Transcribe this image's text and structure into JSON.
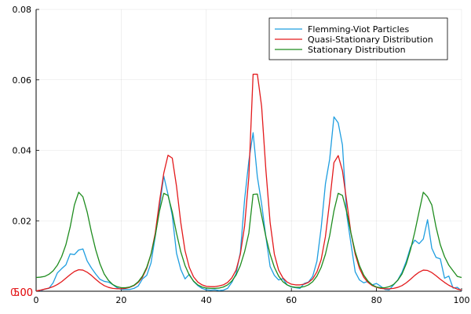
{
  "chart_data": {
    "type": "line",
    "title": "",
    "xlabel": "",
    "ylabel": "",
    "xlim": [
      0,
      100
    ],
    "ylim": [
      0,
      0.08
    ],
    "grid": true,
    "legend_position": "top-right",
    "x_ticks": [
      "0",
      "20",
      "40",
      "60",
      "80",
      "100"
    ],
    "y_ticks": [
      "0.02",
      "0.04",
      "0.06",
      "0.08"
    ],
    "overlay_labels": {
      "text_a": "500",
      "text_b": "0.00",
      "color": "#e31a1c"
    },
    "series": [
      {
        "name": "Flemming-Viot Particles",
        "color": "#1f9ee0",
        "points": [
          [
            1,
            0.0001
          ],
          [
            2,
            0.0006
          ],
          [
            3,
            0.0008
          ],
          [
            4,
            0.0024
          ],
          [
            5,
            0.0052
          ],
          [
            6,
            0.0064
          ],
          [
            7,
            0.0075
          ],
          [
            8,
            0.0106
          ],
          [
            9,
            0.0104
          ],
          [
            10,
            0.0117
          ],
          [
            11,
            0.012
          ],
          [
            12,
            0.0086
          ],
          [
            13,
            0.0066
          ],
          [
            14,
            0.0049
          ],
          [
            15,
            0.0034
          ],
          [
            16,
            0.0028
          ],
          [
            17,
            0.0026
          ],
          [
            18,
            0.0019
          ],
          [
            19,
            0.001
          ],
          [
            20,
            0.0005
          ],
          [
            21,
            0.0005
          ],
          [
            22,
            0.0005
          ],
          [
            23,
            0.0008
          ],
          [
            24,
            0.0015
          ],
          [
            25,
            0.0035
          ],
          [
            26,
            0.0045
          ],
          [
            27,
            0.008
          ],
          [
            28,
            0.0155
          ],
          [
            29,
            0.0238
          ],
          [
            30,
            0.0327
          ],
          [
            31,
            0.0275
          ],
          [
            32,
            0.0215
          ],
          [
            33,
            0.0108
          ],
          [
            34,
            0.0062
          ],
          [
            35,
            0.0035
          ],
          [
            36,
            0.0048
          ],
          [
            37,
            0.0028
          ],
          [
            38,
            0.0016
          ],
          [
            39,
            0.0008
          ],
          [
            40,
            0.0004
          ],
          [
            41,
            0.0003
          ],
          [
            42,
            0.0004
          ],
          [
            43,
            0.0002
          ],
          [
            44,
            0.0003
          ],
          [
            45,
            0.0008
          ],
          [
            46,
            0.0025
          ],
          [
            47,
            0.005
          ],
          [
            48,
            0.011
          ],
          [
            49,
            0.026
          ],
          [
            50,
            0.037
          ],
          [
            51,
            0.045
          ],
          [
            52,
            0.0325
          ],
          [
            53,
            0.0248
          ],
          [
            54,
            0.0155
          ],
          [
            55,
            0.007
          ],
          [
            56,
            0.0045
          ],
          [
            57,
            0.0032
          ],
          [
            58,
            0.0036
          ],
          [
            59,
            0.0018
          ],
          [
            60,
            0.0012
          ],
          [
            61,
            0.001
          ],
          [
            62,
            0.0008
          ],
          [
            63,
            0.0022
          ],
          [
            64,
            0.0026
          ],
          [
            65,
            0.0042
          ],
          [
            66,
            0.0085
          ],
          [
            67,
            0.018
          ],
          [
            68,
            0.0305
          ],
          [
            69,
            0.0375
          ],
          [
            70,
            0.0495
          ],
          [
            71,
            0.0478
          ],
          [
            72,
            0.0415
          ],
          [
            73,
            0.0218
          ],
          [
            74,
            0.0135
          ],
          [
            75,
            0.0055
          ],
          [
            76,
            0.0032
          ],
          [
            77,
            0.0024
          ],
          [
            78,
            0.0028
          ],
          [
            79,
            0.0018
          ],
          [
            80,
            0.0022
          ],
          [
            81,
            0.0014
          ],
          [
            82,
            0.0005
          ],
          [
            83,
            0.0004
          ],
          [
            84,
            0.0018
          ],
          [
            85,
            0.0032
          ],
          [
            86,
            0.0054
          ],
          [
            87,
            0.0085
          ],
          [
            88,
            0.0125
          ],
          [
            89,
            0.0145
          ],
          [
            90,
            0.0135
          ],
          [
            91,
            0.0148
          ],
          [
            92,
            0.0203
          ],
          [
            93,
            0.0122
          ],
          [
            94,
            0.0096
          ],
          [
            95,
            0.0092
          ],
          [
            96,
            0.0037
          ],
          [
            97,
            0.0043
          ],
          [
            98,
            0.0009
          ],
          [
            99,
            0.0011
          ],
          [
            100,
            0.0001
          ]
        ]
      },
      {
        "name": "Quasi-Stationary Distribution",
        "color": "#e31a1c",
        "points": [
          [
            0,
            0.0001
          ],
          [
            1,
            0.0003
          ],
          [
            2,
            0.0006
          ],
          [
            3,
            0.0009
          ],
          [
            4,
            0.0013
          ],
          [
            5,
            0.0019
          ],
          [
            6,
            0.0027
          ],
          [
            7,
            0.0037
          ],
          [
            8,
            0.0047
          ],
          [
            9,
            0.0056
          ],
          [
            10,
            0.0061
          ],
          [
            11,
            0.006
          ],
          [
            12,
            0.0054
          ],
          [
            13,
            0.0045
          ],
          [
            14,
            0.0034
          ],
          [
            15,
            0.0024
          ],
          [
            16,
            0.0016
          ],
          [
            17,
            0.0011
          ],
          [
            18,
            0.0008
          ],
          [
            19,
            0.0007
          ],
          [
            20,
            0.0007
          ],
          [
            21,
            0.0008
          ],
          [
            22,
            0.0011
          ],
          [
            23,
            0.0016
          ],
          [
            24,
            0.0025
          ],
          [
            25,
            0.004
          ],
          [
            26,
            0.0065
          ],
          [
            27,
            0.0105
          ],
          [
            28,
            0.0165
          ],
          [
            29,
            0.0255
          ],
          [
            30,
            0.0335
          ],
          [
            31,
            0.0386
          ],
          [
            32,
            0.0378
          ],
          [
            33,
            0.0298
          ],
          [
            34,
            0.0195
          ],
          [
            35,
            0.0115
          ],
          [
            36,
            0.0068
          ],
          [
            37,
            0.0041
          ],
          [
            38,
            0.0026
          ],
          [
            39,
            0.0018
          ],
          [
            40,
            0.0014
          ],
          [
            41,
            0.0013
          ],
          [
            42,
            0.0013
          ],
          [
            43,
            0.0015
          ],
          [
            44,
            0.0018
          ],
          [
            45,
            0.0025
          ],
          [
            46,
            0.0038
          ],
          [
            47,
            0.006
          ],
          [
            48,
            0.0105
          ],
          [
            49,
            0.0185
          ],
          [
            50,
            0.0325
          ],
          [
            51,
            0.0616
          ],
          [
            52,
            0.0616
          ],
          [
            53,
            0.0525
          ],
          [
            54,
            0.0345
          ],
          [
            55,
            0.0195
          ],
          [
            56,
            0.0105
          ],
          [
            57,
            0.006
          ],
          [
            58,
            0.0038
          ],
          [
            59,
            0.0026
          ],
          [
            60,
            0.002
          ],
          [
            61,
            0.0018
          ],
          [
            62,
            0.0018
          ],
          [
            63,
            0.002
          ],
          [
            64,
            0.0025
          ],
          [
            65,
            0.0035
          ],
          [
            66,
            0.0055
          ],
          [
            67,
            0.009
          ],
          [
            68,
            0.0155
          ],
          [
            69,
            0.0255
          ],
          [
            70,
            0.0365
          ],
          [
            71,
            0.0385
          ],
          [
            72,
            0.0342
          ],
          [
            73,
            0.0255
          ],
          [
            74,
            0.0165
          ],
          [
            75,
            0.0105
          ],
          [
            76,
            0.0065
          ],
          [
            77,
            0.004
          ],
          [
            78,
            0.0025
          ],
          [
            79,
            0.0016
          ],
          [
            80,
            0.0011
          ],
          [
            81,
            0.0008
          ],
          [
            82,
            0.0007
          ],
          [
            83,
            0.0007
          ],
          [
            84,
            0.0008
          ],
          [
            85,
            0.0011
          ],
          [
            86,
            0.0016
          ],
          [
            87,
            0.0024
          ],
          [
            88,
            0.0034
          ],
          [
            89,
            0.0045
          ],
          [
            90,
            0.0054
          ],
          [
            91,
            0.006
          ],
          [
            92,
            0.0059
          ],
          [
            93,
            0.0053
          ],
          [
            94,
            0.0044
          ],
          [
            95,
            0.0034
          ],
          [
            96,
            0.0025
          ],
          [
            97,
            0.0017
          ],
          [
            98,
            0.0011
          ],
          [
            99,
            0.0006
          ],
          [
            100,
            0.0003
          ]
        ]
      },
      {
        "name": "Stationary Distribution",
        "color": "#1e8c1e",
        "points": [
          [
            0,
            0.0039
          ],
          [
            1,
            0.004
          ],
          [
            2,
            0.0042
          ],
          [
            3,
            0.0048
          ],
          [
            4,
            0.0058
          ],
          [
            5,
            0.0074
          ],
          [
            6,
            0.0098
          ],
          [
            7,
            0.0132
          ],
          [
            8,
            0.0182
          ],
          [
            9,
            0.0245
          ],
          [
            10,
            0.0281
          ],
          [
            11,
            0.0268
          ],
          [
            12,
            0.0225
          ],
          [
            13,
            0.0168
          ],
          [
            14,
            0.0118
          ],
          [
            15,
            0.0078
          ],
          [
            16,
            0.0049
          ],
          [
            17,
            0.0031
          ],
          [
            18,
            0.0019
          ],
          [
            19,
            0.0013
          ],
          [
            20,
            0.001
          ],
          [
            21,
            0.001
          ],
          [
            22,
            0.0012
          ],
          [
            23,
            0.0017
          ],
          [
            24,
            0.0027
          ],
          [
            25,
            0.0043
          ],
          [
            26,
            0.0068
          ],
          [
            27,
            0.0105
          ],
          [
            28,
            0.0158
          ],
          [
            29,
            0.0228
          ],
          [
            30,
            0.0278
          ],
          [
            31,
            0.0272
          ],
          [
            32,
            0.0225
          ],
          [
            33,
            0.0165
          ],
          [
            34,
            0.0112
          ],
          [
            35,
            0.0073
          ],
          [
            36,
            0.0046
          ],
          [
            37,
            0.0029
          ],
          [
            38,
            0.0018
          ],
          [
            39,
            0.0012
          ],
          [
            40,
            0.0009
          ],
          [
            41,
            0.0008
          ],
          [
            42,
            0.0008
          ],
          [
            43,
            0.0009
          ],
          [
            44,
            0.0012
          ],
          [
            45,
            0.0018
          ],
          [
            46,
            0.0029
          ],
          [
            47,
            0.0046
          ],
          [
            48,
            0.0073
          ],
          [
            49,
            0.0112
          ],
          [
            50,
            0.0165
          ],
          [
            51,
            0.0275
          ],
          [
            52,
            0.0276
          ],
          [
            53,
            0.0215
          ],
          [
            54,
            0.0155
          ],
          [
            55,
            0.0105
          ],
          [
            56,
            0.0068
          ],
          [
            57,
            0.0043
          ],
          [
            58,
            0.0027
          ],
          [
            59,
            0.0018
          ],
          [
            60,
            0.0013
          ],
          [
            61,
            0.0011
          ],
          [
            62,
            0.0011
          ],
          [
            63,
            0.0013
          ],
          [
            64,
            0.0018
          ],
          [
            65,
            0.0027
          ],
          [
            66,
            0.0043
          ],
          [
            67,
            0.0068
          ],
          [
            68,
            0.0105
          ],
          [
            69,
            0.0158
          ],
          [
            70,
            0.0228
          ],
          [
            71,
            0.0278
          ],
          [
            72,
            0.0272
          ],
          [
            73,
            0.0225
          ],
          [
            74,
            0.0165
          ],
          [
            75,
            0.0112
          ],
          [
            76,
            0.0073
          ],
          [
            77,
            0.0046
          ],
          [
            78,
            0.0029
          ],
          [
            79,
            0.0018
          ],
          [
            80,
            0.0012
          ],
          [
            81,
            0.001
          ],
          [
            82,
            0.001
          ],
          [
            83,
            0.0013
          ],
          [
            84,
            0.0019
          ],
          [
            85,
            0.0031
          ],
          [
            86,
            0.0049
          ],
          [
            87,
            0.0078
          ],
          [
            88,
            0.0118
          ],
          [
            89,
            0.0168
          ],
          [
            90,
            0.0225
          ],
          [
            91,
            0.0281
          ],
          [
            92,
            0.0268
          ],
          [
            93,
            0.0245
          ],
          [
            94,
            0.0182
          ],
          [
            95,
            0.0132
          ],
          [
            96,
            0.0098
          ],
          [
            97,
            0.0074
          ],
          [
            98,
            0.0058
          ],
          [
            99,
            0.0042
          ],
          [
            100,
            0.0039
          ]
        ]
      }
    ]
  }
}
